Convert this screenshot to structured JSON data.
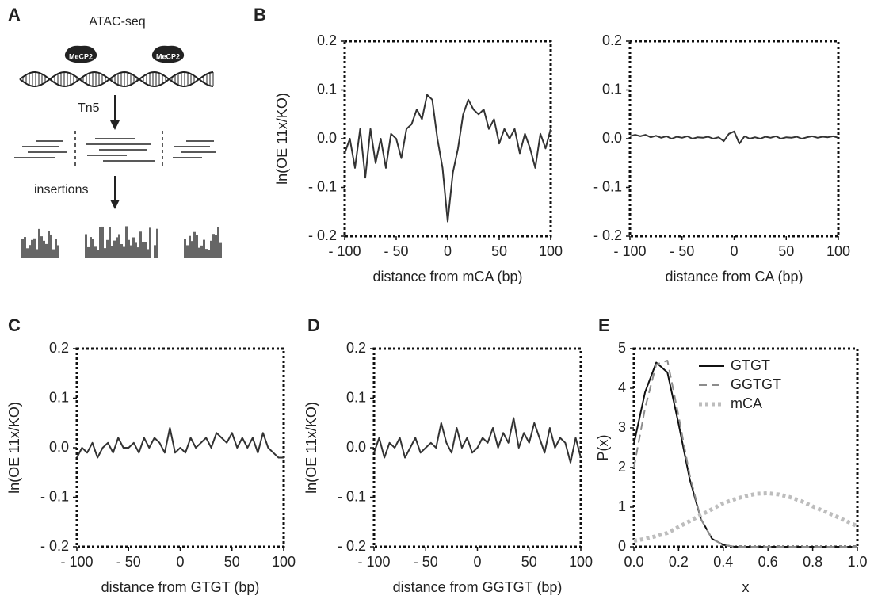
{
  "diagram": {
    "panel": "A",
    "title": "ATAC-seq",
    "protein_labels": [
      "MeCP2",
      "MeCP2"
    ],
    "step1": "Tn5",
    "step2": "insertions"
  },
  "chart_data": [
    {
      "type": "line",
      "panel": "B",
      "xlabel": "distance from mCA (bp)",
      "ylabel": "ln(OE 11x/KO)",
      "x": [
        -100,
        -95,
        -90,
        -85,
        -80,
        -75,
        -70,
        -65,
        -60,
        -55,
        -50,
        -45,
        -40,
        -35,
        -30,
        -25,
        -20,
        -15,
        -10,
        -5,
        0,
        5,
        10,
        15,
        20,
        25,
        30,
        35,
        40,
        45,
        50,
        55,
        60,
        65,
        70,
        75,
        80,
        85,
        90,
        95,
        100
      ],
      "series": [
        {
          "color": "#333333",
          "dash": "solid",
          "values": [
            -0.03,
            0.0,
            -0.06,
            0.02,
            -0.08,
            0.02,
            -0.05,
            0.0,
            -0.06,
            0.01,
            0.0,
            -0.04,
            0.02,
            0.03,
            0.06,
            0.04,
            0.09,
            0.08,
            0.0,
            -0.06,
            -0.17,
            -0.07,
            -0.02,
            0.05,
            0.08,
            0.06,
            0.05,
            0.06,
            0.02,
            0.04,
            -0.01,
            0.02,
            0.0,
            0.02,
            -0.03,
            0.01,
            -0.02,
            -0.06,
            0.01,
            -0.02,
            0.02
          ]
        }
      ],
      "xlim": [
        -100,
        100
      ],
      "ylim": [
        -0.2,
        0.2
      ],
      "xticks": [
        {
          "value": -100,
          "label": "- 100"
        },
        {
          "value": -50,
          "label": "- 50"
        },
        0,
        50,
        100
      ],
      "yticks": [
        {
          "value": -0.2,
          "label": "- 0.2"
        },
        {
          "value": -0.1,
          "label": "- 0.1"
        },
        {
          "value": 0,
          "label": "0.0"
        },
        0.1,
        0.2
      ]
    },
    {
      "type": "line",
      "panel": "",
      "xlabel": "distance from CA (bp)",
      "x": [
        -100,
        -95,
        -90,
        -85,
        -80,
        -75,
        -70,
        -65,
        -60,
        -55,
        -50,
        -45,
        -40,
        -35,
        -30,
        -25,
        -20,
        -15,
        -10,
        -5,
        0,
        5,
        10,
        15,
        20,
        25,
        30,
        35,
        40,
        45,
        50,
        55,
        60,
        65,
        70,
        75,
        80,
        85,
        90,
        95,
        100
      ],
      "series": [
        {
          "color": "#333333",
          "dash": "solid",
          "values": [
            0.005,
            0.008,
            0.005,
            0.008,
            0.003,
            0.006,
            0.002,
            0.005,
            0.0,
            0.004,
            0.002,
            0.005,
            0.0,
            0.003,
            0.002,
            0.004,
            0.0,
            0.003,
            -0.005,
            0.01,
            0.015,
            -0.01,
            0.005,
            0.0,
            0.003,
            0.0,
            0.004,
            0.002,
            0.005,
            0.0,
            0.003,
            0.002,
            0.004,
            0.0,
            0.003,
            0.005,
            0.002,
            0.004,
            0.003,
            0.005,
            0.002
          ]
        }
      ],
      "xlim": [
        -100,
        100
      ],
      "ylim": [
        -0.2,
        0.2
      ],
      "xticks": [
        {
          "value": -100,
          "label": "- 100"
        },
        {
          "value": -50,
          "label": "- 50"
        },
        0,
        50,
        100
      ],
      "yticks": [
        {
          "value": -0.2,
          "label": "- 0.2"
        },
        {
          "value": -0.1,
          "label": "- 0.1"
        },
        {
          "value": 0,
          "label": "0.0"
        },
        0.1,
        0.2
      ]
    },
    {
      "type": "line",
      "panel": "C",
      "xlabel": "distance from GTGT (bp)",
      "ylabel": "ln(OE 11x/KO)",
      "x": [
        -100,
        -95,
        -90,
        -85,
        -80,
        -75,
        -70,
        -65,
        -60,
        -55,
        -50,
        -45,
        -40,
        -35,
        -30,
        -25,
        -20,
        -15,
        -10,
        -5,
        0,
        5,
        10,
        15,
        20,
        25,
        30,
        35,
        40,
        45,
        50,
        55,
        60,
        65,
        70,
        75,
        80,
        85,
        90,
        95,
        100
      ],
      "series": [
        {
          "color": "#333333",
          "dash": "solid",
          "values": [
            -0.02,
            0.0,
            -0.01,
            0.01,
            -0.02,
            0.0,
            0.01,
            -0.01,
            0.02,
            0.0,
            0.0,
            0.01,
            -0.01,
            0.02,
            0.0,
            0.02,
            0.01,
            -0.01,
            0.04,
            -0.01,
            0.0,
            -0.01,
            0.02,
            0.0,
            0.01,
            0.02,
            0.0,
            0.03,
            0.02,
            0.01,
            0.03,
            0.0,
            0.02,
            0.0,
            0.02,
            -0.01,
            0.03,
            0.0,
            -0.01,
            -0.02,
            -0.02
          ]
        }
      ],
      "xlim": [
        -100,
        100
      ],
      "ylim": [
        -0.2,
        0.2
      ],
      "xticks": [
        {
          "value": -100,
          "label": "- 100"
        },
        {
          "value": -50,
          "label": "- 50"
        },
        0,
        50,
        100
      ],
      "yticks": [
        {
          "value": -0.2,
          "label": "- 0.2"
        },
        {
          "value": -0.1,
          "label": "- 0.1"
        },
        {
          "value": 0,
          "label": "0.0"
        },
        0.1,
        0.2
      ]
    },
    {
      "type": "line",
      "panel": "D",
      "xlabel": "distance from GGTGT (bp)",
      "ylabel": "ln(OE 11x/KO)",
      "x": [
        -100,
        -95,
        -90,
        -85,
        -80,
        -75,
        -70,
        -65,
        -60,
        -55,
        -50,
        -45,
        -40,
        -35,
        -30,
        -25,
        -20,
        -15,
        -10,
        -5,
        0,
        5,
        10,
        15,
        20,
        25,
        30,
        35,
        40,
        45,
        50,
        55,
        60,
        65,
        70,
        75,
        80,
        85,
        90,
        95,
        100
      ],
      "series": [
        {
          "color": "#333333",
          "dash": "solid",
          "values": [
            -0.01,
            0.02,
            -0.02,
            0.01,
            0.0,
            0.02,
            -0.02,
            0.0,
            0.02,
            -0.01,
            0.0,
            0.01,
            0.0,
            0.05,
            0.01,
            -0.01,
            0.04,
            0.0,
            0.02,
            -0.01,
            0.0,
            0.02,
            0.01,
            0.04,
            0.0,
            0.03,
            0.01,
            0.06,
            0.0,
            0.03,
            0.01,
            0.05,
            0.02,
            -0.01,
            0.04,
            0.0,
            0.02,
            0.01,
            -0.03,
            0.02,
            -0.02
          ]
        }
      ],
      "xlim": [
        -100,
        100
      ],
      "ylim": [
        -0.2,
        0.2
      ],
      "xticks": [
        {
          "value": -100,
          "label": "- 100"
        },
        {
          "value": -50,
          "label": "- 50"
        },
        0,
        50,
        100
      ],
      "yticks": [
        {
          "value": -0.2,
          "label": "- 0.2"
        },
        {
          "value": -0.1,
          "label": "- 0.1"
        },
        {
          "value": 0,
          "label": "0.0"
        },
        0.1,
        0.2
      ]
    },
    {
      "type": "line",
      "panel": "E",
      "xlabel": "x",
      "ylabel": "P(x)",
      "legend": "upper right",
      "x": [
        0,
        0.05,
        0.1,
        0.15,
        0.2,
        0.25,
        0.3,
        0.35,
        0.4,
        0.45,
        0.5,
        0.55,
        0.6,
        0.65,
        0.7,
        0.75,
        0.8,
        0.85,
        0.9,
        0.95,
        1.0
      ],
      "series": [
        {
          "name": "GTGT",
          "color": "#111111",
          "dash": "solid",
          "values": [
            2.6,
            3.9,
            4.65,
            4.4,
            3.1,
            1.7,
            0.7,
            0.2,
            0.05,
            0,
            0,
            0,
            0,
            0,
            0,
            0,
            0,
            0,
            0,
            0,
            0
          ]
        },
        {
          "name": "GGTGT",
          "color": "#8c8c8c",
          "dash": "dashed",
          "values": [
            2.0,
            3.5,
            4.6,
            4.7,
            3.3,
            1.8,
            0.7,
            0.2,
            0.05,
            0,
            0,
            0,
            0,
            0,
            0,
            0,
            0,
            0,
            0,
            0,
            0
          ]
        },
        {
          "name": "mCA",
          "color": "#bdbdbd",
          "dash": "dotted",
          "values": [
            0.15,
            0.2,
            0.27,
            0.35,
            0.5,
            0.65,
            0.8,
            0.95,
            1.1,
            1.2,
            1.28,
            1.34,
            1.35,
            1.32,
            1.25,
            1.15,
            1.02,
            0.9,
            0.78,
            0.65,
            0.52
          ]
        }
      ],
      "xlim": [
        0,
        1
      ],
      "ylim": [
        0,
        5
      ],
      "xticks": [
        {
          "value": 0,
          "label": "0.0"
        },
        0.2,
        0.4,
        0.6,
        0.8,
        {
          "value": 1,
          "label": "1.0"
        }
      ],
      "yticks": [
        0,
        1,
        2,
        3,
        4,
        5
      ]
    }
  ]
}
